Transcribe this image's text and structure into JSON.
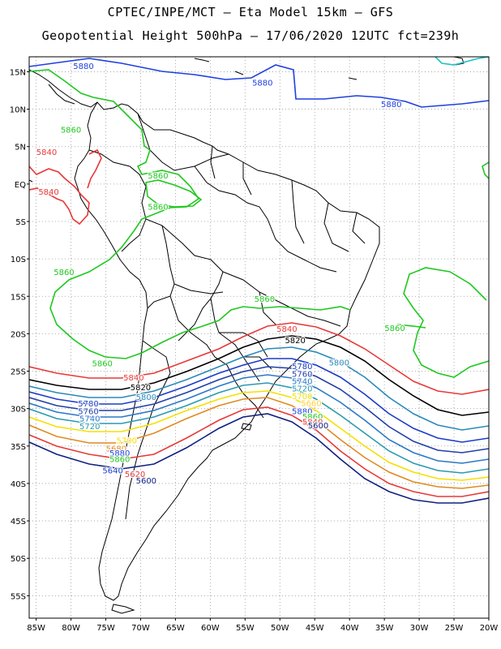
{
  "header": {
    "line1": "CPTEC/INPE/MCT –  Eta Model 15km – GFS",
    "line2": "Geopotential Height 500hPa – 17/06/2020 12UTC fct=239h"
  },
  "axes": {
    "lat_labels": [
      "15N",
      "10N",
      "5N",
      "EQ",
      "5S",
      "10S",
      "15S",
      "20S",
      "25S",
      "30S",
      "35S",
      "40S",
      "45S",
      "50S",
      "55S"
    ],
    "lon_labels": [
      "85W",
      "80W",
      "75W",
      "70W",
      "65W",
      "60W",
      "55W",
      "50W",
      "45W",
      "40W",
      "35W",
      "30W",
      "25W",
      "20W"
    ],
    "lat_range": [
      17,
      -58
    ],
    "lon_range": [
      -86,
      -20
    ],
    "grid": "dotted"
  },
  "colors": {
    "c5880": "#1f3fe0",
    "c5860": "#1fc81f",
    "c5840": "#e83838",
    "c5820": "#000000",
    "c5800": "#2a8ab8",
    "c5780": "#1a3cc8",
    "c5760": "#2040a8",
    "c5740": "#2a78c8",
    "c5720": "#2a9ab0",
    "c5700": "#f5e000",
    "c5680": "#e08a20",
    "c5660": "#ffd040",
    "c5620": "#e83838",
    "c5600": "#102080",
    "c5900": "#20c0c0"
  },
  "contour_labels": [
    {
      "text": "5880",
      "color": "#1f3fe0",
      "lon": -78.2,
      "lat": 15.8
    },
    {
      "text": "5880",
      "color": "#1f3fe0",
      "lon": -52.5,
      "lat": 13.6
    },
    {
      "text": "5880",
      "color": "#1f3fe0",
      "lon": -34.0,
      "lat": 10.7
    },
    {
      "text": "5860",
      "color": "#1fc81f",
      "lon": -80.0,
      "lat": 7.3
    },
    {
      "text": "5860",
      "color": "#1fc81f",
      "lon": -67.5,
      "lat": 1.2
    },
    {
      "text": "5860",
      "color": "#1fc81f",
      "lon": -67.5,
      "lat": -3.0
    },
    {
      "text": "5860",
      "color": "#1fc81f",
      "lon": -81.0,
      "lat": -11.7
    },
    {
      "text": "5860",
      "color": "#1fc81f",
      "lon": -52.2,
      "lat": -15.3
    },
    {
      "text": "5860",
      "color": "#1fc81f",
      "lon": -75.5,
      "lat": -23.9
    },
    {
      "text": "5860",
      "color": "#1fc81f",
      "lon": -33.5,
      "lat": -19.2
    },
    {
      "text": "5840",
      "color": "#e83838",
      "lon": -83.2,
      "lat": -1.0
    },
    {
      "text": "5840",
      "color": "#e83838",
      "lon": -83.5,
      "lat": 4.3
    },
    {
      "text": "5840",
      "color": "#e83838",
      "lon": -49.0,
      "lat": -19.3
    },
    {
      "text": "5840",
      "color": "#e83838",
      "lon": -71.0,
      "lat": -25.8
    },
    {
      "text": "5820",
      "color": "#000000",
      "lon": -47.8,
      "lat": -20.8
    },
    {
      "text": "5820",
      "color": "#000000",
      "lon": -70.0,
      "lat": -27.1
    },
    {
      "text": "5800",
      "color": "#2a8ab8",
      "lon": -41.5,
      "lat": -23.8
    },
    {
      "text": "5800",
      "color": "#2a8ab8",
      "lon": -69.2,
      "lat": -28.4
    },
    {
      "text": "5780",
      "color": "#1a3cc8",
      "lon": -77.5,
      "lat": -29.3
    },
    {
      "text": "5780",
      "color": "#1a3cc8",
      "lon": -46.8,
      "lat": -24.3
    },
    {
      "text": "5760",
      "color": "#2040a8",
      "lon": -77.5,
      "lat": -30.3
    },
    {
      "text": "5760",
      "color": "#2040a8",
      "lon": -46.8,
      "lat": -25.3
    },
    {
      "text": "5740",
      "color": "#2a78c8",
      "lon": -77.3,
      "lat": -31.3
    },
    {
      "text": "5740",
      "color": "#2a78c8",
      "lon": -46.8,
      "lat": -26.3
    },
    {
      "text": "5720",
      "color": "#2a9ab0",
      "lon": -77.3,
      "lat": -32.3
    },
    {
      "text": "5720",
      "color": "#2a9ab0",
      "lon": -46.8,
      "lat": -27.3
    },
    {
      "text": "5700",
      "color": "#f5e000",
      "lon": -72.0,
      "lat": -34.2
    },
    {
      "text": "5700",
      "color": "#f5e000",
      "lon": -46.8,
      "lat": -28.3
    },
    {
      "text": "5680",
      "color": "#e08a20",
      "lon": -73.5,
      "lat": -35.3
    },
    {
      "text": "5660",
      "color": "#ffd040",
      "lon": -45.5,
      "lat": -29.2
    },
    {
      "text": "5880",
      "color": "#1f3fe0",
      "lon": -73.0,
      "lat": -35.9
    },
    {
      "text": "5880",
      "color": "#1f3fe0",
      "lon": -46.8,
      "lat": -30.3
    },
    {
      "text": "5860",
      "color": "#1fc81f",
      "lon": -73.0,
      "lat": -36.7
    },
    {
      "text": "5860",
      "color": "#1fc81f",
      "lon": -45.3,
      "lat": -31.0
    },
    {
      "text": "5840",
      "color": "#e83838",
      "lon": -45.3,
      "lat": -31.7
    },
    {
      "text": "5640",
      "color": "#1a3cc8",
      "lon": -74.0,
      "lat": -38.2
    },
    {
      "text": "5620",
      "color": "#e83838",
      "lon": -70.8,
      "lat": -38.7
    },
    {
      "text": "5600",
      "color": "#102080",
      "lon": -69.2,
      "lat": -39.6
    },
    {
      "text": "5600",
      "color": "#102080",
      "lon": -44.5,
      "lat": -32.2
    }
  ]
}
